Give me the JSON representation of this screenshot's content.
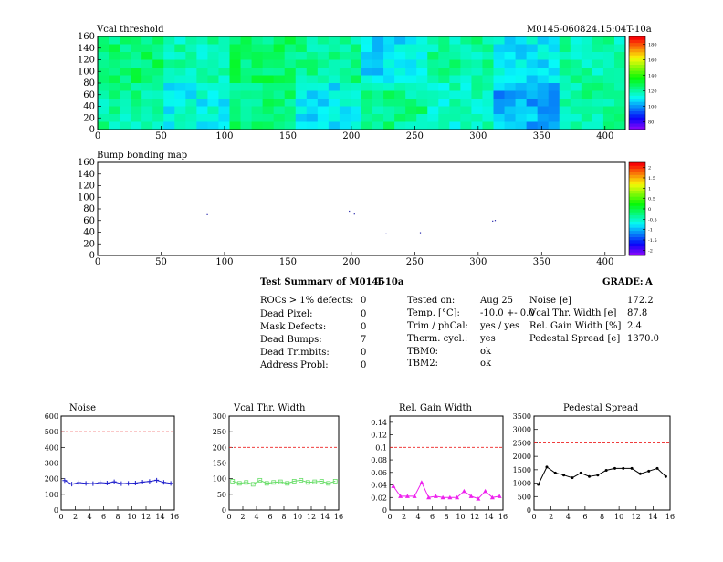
{
  "header": {
    "left_title": "Vcal threshold",
    "right_title": "M0145-060824.15:04T-10a",
    "bump_title": "Bump bonding map"
  },
  "summary": {
    "heading": "Test Summary of M0145",
    "temp_tag": "T-10a",
    "grade_label": "GRADE:",
    "grade": "A",
    "defects": [
      {
        "label": "ROCs > 1% defects:",
        "value": "0"
      },
      {
        "label": "Dead Pixel:",
        "value": "0"
      },
      {
        "label": "Mask Defects:",
        "value": "0"
      },
      {
        "label": "Dead Bumps:",
        "value": "7"
      },
      {
        "label": "Dead Trimbits:",
        "value": "0"
      },
      {
        "label": "Address Probl:",
        "value": "0"
      }
    ],
    "conditions": [
      {
        "label": "Tested on:",
        "value": "Aug 25"
      },
      {
        "label": "Temp. [°C]:",
        "value": "-10.0 +- 0.0"
      },
      {
        "label": "Trim / phCal:",
        "value": "yes / yes"
      },
      {
        "label": "Therm. cycl.:",
        "value": "yes"
      },
      {
        "label": "TBM0:",
        "value": "ok"
      },
      {
        "label": "TBM2:",
        "value": "ok"
      }
    ],
    "results": [
      {
        "label": "Noise [e]",
        "value": "172.2"
      },
      {
        "label": "Vcal Thr. Width [e]",
        "value": "87.8"
      },
      {
        "label": "Rel. Gain Width [%]",
        "value": "2.4"
      },
      {
        "label": "Pedestal Spread [e]",
        "value": "1370.0"
      }
    ]
  },
  "colors": {
    "noise": "#1f1fcc",
    "vcal_width": "#66dd66",
    "gain_width": "#ee22ee",
    "pedestal": "#000000",
    "limit_line": "#ee2222"
  },
  "chart_data": [
    {
      "type": "heatmap",
      "title": "Vcal threshold",
      "xlim": [
        0,
        416
      ],
      "ylim": [
        0,
        160
      ],
      "xticks": [
        0,
        50,
        100,
        150,
        200,
        250,
        300,
        350,
        400
      ],
      "yticks": [
        0,
        20,
        40,
        60,
        80,
        100,
        120,
        140,
        160
      ],
      "zticks": [
        "80",
        "100",
        "120",
        "140",
        "160",
        "180"
      ],
      "roc_grid": {
        "cols": 8,
        "rows": 2
      },
      "roc_mean_top": [
        125,
        118,
        126,
        122,
        108,
        120,
        110,
        118
      ],
      "roc_mean_bottom": [
        120,
        112,
        124,
        110,
        122,
        116,
        102,
        120
      ]
    },
    {
      "type": "heatmap",
      "title": "Bump bonding map",
      "xlim": [
        0,
        416
      ],
      "ylim": [
        0,
        160
      ],
      "xticks": [
        0,
        50,
        100,
        150,
        200,
        250,
        300,
        350,
        400
      ],
      "yticks": [
        0,
        20,
        40,
        60,
        80,
        100,
        120,
        140,
        160
      ],
      "zticks": [
        "-2",
        "-1.5",
        "-1",
        "-0.5",
        "0",
        "0.5",
        "1",
        "1.5",
        "2"
      ],
      "points": [
        {
          "x": 86,
          "y": 71
        },
        {
          "x": 198,
          "y": 77
        },
        {
          "x": 202,
          "y": 72
        },
        {
          "x": 227,
          "y": 38
        },
        {
          "x": 254,
          "y": 40
        },
        {
          "x": 311,
          "y": 60
        },
        {
          "x": 313,
          "y": 61
        }
      ]
    },
    {
      "type": "line",
      "title": "Noise",
      "xlim": [
        0,
        16
      ],
      "ylim": [
        0,
        600
      ],
      "xticks": [
        0,
        2,
        4,
        6,
        8,
        10,
        12,
        14,
        16
      ],
      "yticks": [
        0,
        100,
        200,
        300,
        400,
        500,
        600
      ],
      "limit": 500,
      "marker": "star",
      "x": [
        0,
        1,
        2,
        3,
        4,
        5,
        6,
        7,
        8,
        9,
        10,
        11,
        12,
        13,
        14,
        15
      ],
      "values": [
        188,
        165,
        175,
        170,
        168,
        175,
        172,
        180,
        168,
        170,
        172,
        178,
        182,
        190,
        176,
        170
      ]
    },
    {
      "type": "line",
      "title": "Vcal Thr. Width",
      "xlim": [
        0,
        16
      ],
      "ylim": [
        0,
        300
      ],
      "xticks": [
        0,
        2,
        4,
        6,
        8,
        10,
        12,
        14,
        16
      ],
      "yticks": [
        0,
        50,
        100,
        150,
        200,
        250,
        300
      ],
      "limit": 200,
      "marker": "square",
      "x": [
        0,
        1,
        2,
        3,
        4,
        5,
        6,
        7,
        8,
        9,
        10,
        11,
        12,
        13,
        14,
        15
      ],
      "values": [
        92,
        85,
        88,
        82,
        95,
        85,
        88,
        90,
        85,
        92,
        95,
        88,
        90,
        92,
        85,
        92
      ]
    },
    {
      "type": "line",
      "title": "Rel. Gain Width",
      "xlim": [
        0,
        16
      ],
      "ylim": [
        0,
        0.15
      ],
      "xticks": [
        0,
        2,
        4,
        6,
        8,
        10,
        12,
        14,
        16
      ],
      "yticks": [
        0,
        0.02,
        0.04,
        0.06,
        0.08,
        0.1,
        0.12,
        0.14
      ],
      "limit": 0.1,
      "marker": "triangle",
      "x": [
        0,
        1,
        2,
        3,
        4,
        5,
        6,
        7,
        8,
        9,
        10,
        11,
        12,
        13,
        14,
        15
      ],
      "values": [
        0.038,
        0.022,
        0.022,
        0.022,
        0.044,
        0.02,
        0.022,
        0.02,
        0.02,
        0.02,
        0.03,
        0.022,
        0.018,
        0.03,
        0.02,
        0.022
      ]
    },
    {
      "type": "line",
      "title": "Pedestal Spread",
      "xlim": [
        0,
        16
      ],
      "ylim": [
        0,
        3500
      ],
      "xticks": [
        0,
        2,
        4,
        6,
        8,
        10,
        12,
        14,
        16
      ],
      "yticks": [
        0,
        500,
        1000,
        1500,
        2000,
        2500,
        3000,
        3500
      ],
      "limit": 2500,
      "marker": "dot",
      "x": [
        0,
        1,
        2,
        3,
        4,
        5,
        6,
        7,
        8,
        9,
        10,
        11,
        12,
        13,
        14,
        15
      ],
      "values": [
        950,
        1600,
        1380,
        1300,
        1200,
        1380,
        1250,
        1300,
        1480,
        1550,
        1550,
        1550,
        1350,
        1450,
        1550,
        1250
      ]
    }
  ]
}
